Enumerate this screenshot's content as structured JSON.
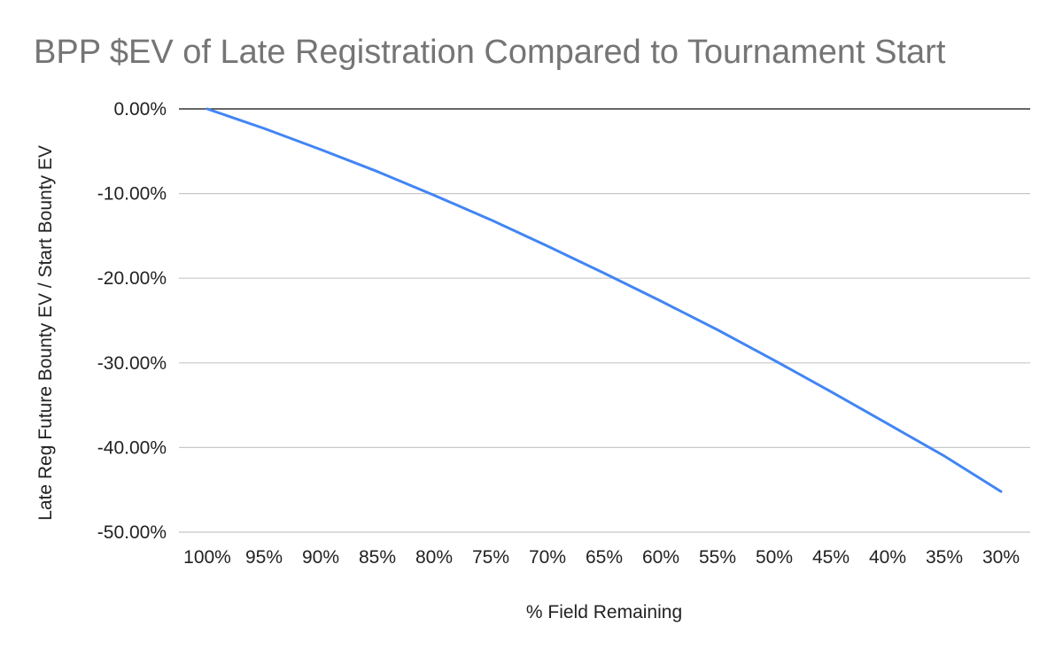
{
  "chart_data": {
    "type": "line",
    "title": "BPP $EV of Late Registration Compared to Tournament Start",
    "xlabel": "% Field Remaining",
    "ylabel": "Late Reg Future Bounty EV / Start Bounty EV",
    "categories": [
      "100%",
      "95%",
      "90%",
      "85%",
      "80%",
      "75%",
      "70%",
      "65%",
      "60%",
      "55%",
      "50%",
      "45%",
      "40%",
      "35%",
      "30%"
    ],
    "y_ticks": [
      "0.00%",
      "-10.00%",
      "-20.00%",
      "-30.00%",
      "-40.00%",
      "-50.00%"
    ],
    "ylim": [
      -50,
      0
    ],
    "grid": true,
    "legend": "none",
    "series": [
      {
        "color": "#4285f4",
        "values": [
          0,
          -2.3,
          -4.8,
          -7.4,
          -10.2,
          -13.1,
          -16.2,
          -19.4,
          -22.7,
          -26.1,
          -29.7,
          -33.4,
          -37.2,
          -41.0,
          -45.2
        ]
      }
    ]
  }
}
